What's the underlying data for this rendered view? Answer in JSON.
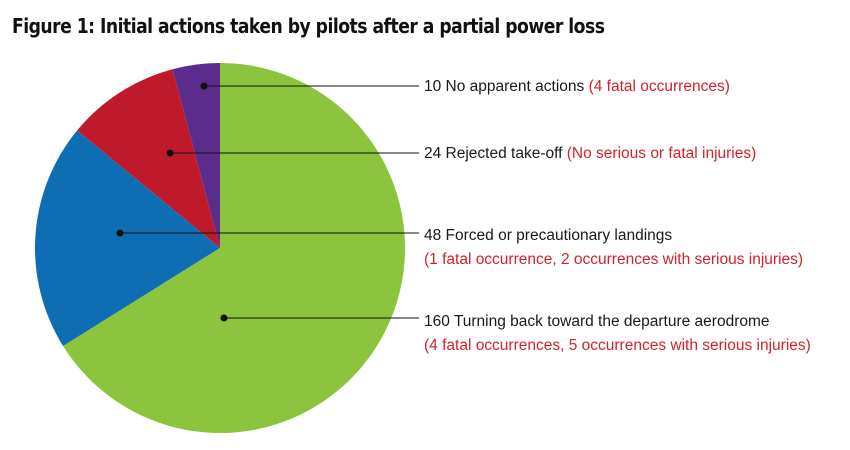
{
  "chart_data": {
    "type": "pie",
    "title": "Figure 1: Initial actions taken by pilots after a partial power loss",
    "slices": [
      {
        "value": 10,
        "label": "No apparent actions",
        "note": "(4 fatal occurrences)",
        "color": "#5b2c8c"
      },
      {
        "value": 24,
        "label": "Rejected take-off",
        "note": "(No serious or fatal injuries)",
        "color": "#be1a2c"
      },
      {
        "value": 48,
        "label": "Forced or precautionary landings",
        "note": "(1 fatal occurrence, 2 occurrences with serious injuries)",
        "color": "#0f6db3"
      },
      {
        "value": 160,
        "label": "Turning back toward the departure aerodrome",
        "note": "(4 fatal occurrences, 5 occurrences with serious injuries)",
        "color": "#8cc43f"
      }
    ],
    "direction": "counterclockwise",
    "start_angle": "12 o'clock"
  }
}
